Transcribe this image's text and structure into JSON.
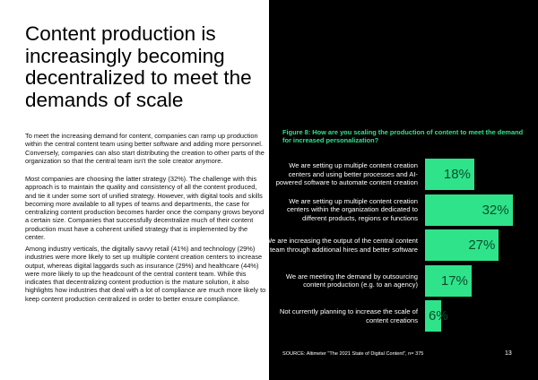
{
  "title": "Content production is increasingly becoming decentralized to meet the demands of scale",
  "paragraphs": [
    "To meet the increasing demand for content, companies can ramp up production within the central content team using better software and adding more personnel. Conversely, companies can also start distributing the creation to other parts of the organization so that the central team isn't the sole creator anymore.",
    "Most companies are choosing the latter strategy (32%). The challenge with this approach is to maintain the quality and consistency of all the content produced, and tie it under some sort of unified strategy. However, with digital tools and skills becoming more available to all types of teams and departments, the case for centralizing content production becomes harder once the company grows beyond a certain size. Companies that successfully decentralize much of their content production must have a coherent unified strategy that is implemented by the center.",
    "Among industry verticals, the digitally savvy retail (41%) and technology (29%) industries were more likely to set up multiple content creation centers to increase output, whereas digital laggards such as insurance (29%) and healthcare (44%) were more likely to up the headcount of the central content team. While this indicates that decentralizing content production is the mature solution, it also highlights how industries that deal with a lot of compliance are much more likely to keep content production centralized in order to better ensure compliance."
  ],
  "chart_data": {
    "type": "bar",
    "orientation": "horizontal",
    "title": "Figure 8: How are you scaling the production of content to meet the demand for increased personalization?",
    "categories": [
      "We are setting up multiple content creation centers and using better processes and AI-powered software to automate content creation",
      "We are setting up multiple content creation centers within the organization dedicated to different products, regions or functions",
      "We are increasing the output of the central content team through additional hires and better software",
      "We are meeting the demand by outsourcing content production (e.g. to an agency)",
      "Not currently planning to increase the scale of content creations"
    ],
    "values": [
      18,
      32,
      27,
      17,
      6
    ],
    "value_labels": [
      "18%",
      "32%",
      "27%",
      "17%",
      "6%"
    ],
    "color": "#2fe38a"
  },
  "source": "SOURCE: Altimeter \"The 2021 State of Digital Content\", n= 375",
  "page_number": "13"
}
